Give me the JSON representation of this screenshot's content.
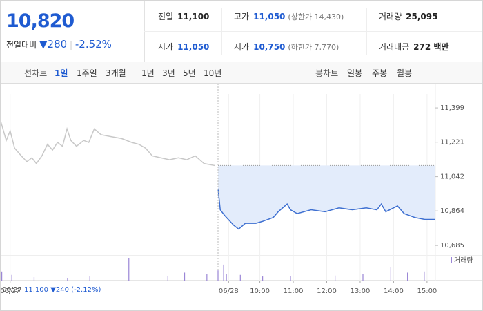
{
  "header": {
    "price": "10,820",
    "change_label": "전일대비",
    "change": "▼280",
    "rate": "-2.52%"
  },
  "stats": [
    [
      {
        "label": "전일",
        "value": "11,100"
      },
      {
        "label": "고가",
        "value": "11,050",
        "note": "(상한가 14,430)"
      },
      {
        "label": "거래량",
        "value": "25,095"
      }
    ],
    [
      {
        "label": "시가",
        "value": "11,050"
      },
      {
        "label": "저가",
        "value": "10,750",
        "note": "(하한가 7,770)"
      },
      {
        "label": "거래대금",
        "value": "272 백만"
      }
    ]
  ],
  "tabs": {
    "line_label": "선차트",
    "periods": [
      "1일",
      "1주일",
      "3개월",
      "1년",
      "3년",
      "5년",
      "10년"
    ],
    "candle_label": "봉차트",
    "candles": [
      "일봉",
      "주봉",
      "월봉"
    ]
  },
  "footer": {
    "date": "06/27",
    "close": "11,100",
    "change": "▼240",
    "rate": "(-2.12%)"
  },
  "chart_data": {
    "type": "line",
    "xlim": [
      0,
      780
    ],
    "ylim": [
      10646,
      11471
    ],
    "xticks": [
      {
        "value": 17,
        "label": "06/27"
      },
      {
        "value": 409,
        "label": "06/28"
      },
      {
        "value": 465,
        "label": "10:00"
      },
      {
        "value": 525,
        "label": "11:00"
      },
      {
        "value": 585,
        "label": "12:00"
      },
      {
        "value": 645,
        "label": "13:00"
      },
      {
        "value": 705,
        "label": "14:00"
      },
      {
        "value": 765,
        "label": "15:00"
      }
    ],
    "yticks": [
      {
        "value": 11399,
        "label": "11,399"
      },
      {
        "value": 11221,
        "label": "11,221"
      },
      {
        "value": 11042,
        "label": "11,042"
      },
      {
        "value": 10864,
        "label": "10,864"
      },
      {
        "value": 10685,
        "label": "10,685"
      }
    ],
    "base_value": 11100,
    "series": [
      {
        "color": "#c8c8c8",
        "x": [
          0,
          10,
          17,
          25,
          37,
          47,
          56,
          64,
          74,
          84,
          93,
          102,
          111,
          119,
          126,
          136,
          149,
          158,
          168,
          180,
          198,
          217,
          235,
          248,
          260,
          272,
          287,
          303,
          319,
          334,
          349,
          365,
          384
        ],
        "values": [
          11330,
          11230,
          11280,
          11190,
          11150,
          11120,
          11140,
          11110,
          11150,
          11210,
          11180,
          11220,
          11200,
          11290,
          11230,
          11200,
          11230,
          11220,
          11290,
          11260,
          11250,
          11240,
          11220,
          11210,
          11190,
          11150,
          11140,
          11130,
          11140,
          11130,
          11150,
          11110,
          11100
        ]
      },
      {
        "color": "#3d6fd1",
        "fill": "#e3ecfb",
        "x": [
          390,
          394,
          402,
          418,
          427,
          439,
          458,
          470,
          489,
          498,
          514,
          520,
          532,
          557,
          582,
          607,
          631,
          656,
          675,
          683,
          691,
          712,
          724,
          743,
          761,
          780
        ],
        "values": [
          10980,
          10870,
          10840,
          10790,
          10770,
          10800,
          10800,
          10810,
          10830,
          10860,
          10900,
          10870,
          10850,
          10870,
          10860,
          10880,
          10870,
          10880,
          10870,
          10900,
          10860,
          10890,
          10850,
          10830,
          10820,
          10820
        ]
      }
    ],
    "volume": {
      "name": "거래량",
      "color": "#9a86d6",
      "ylim": [
        0,
        100
      ],
      "x": [
        2,
        20,
        60,
        120,
        160,
        230,
        300,
        330,
        370,
        390,
        400,
        405,
        430,
        470,
        520,
        600,
        650,
        700,
        730,
        760
      ],
      "values": [
        40,
        25,
        15,
        12,
        18,
        100,
        20,
        35,
        30,
        45,
        70,
        30,
        25,
        18,
        20,
        22,
        28,
        60,
        35,
        40
      ]
    }
  }
}
